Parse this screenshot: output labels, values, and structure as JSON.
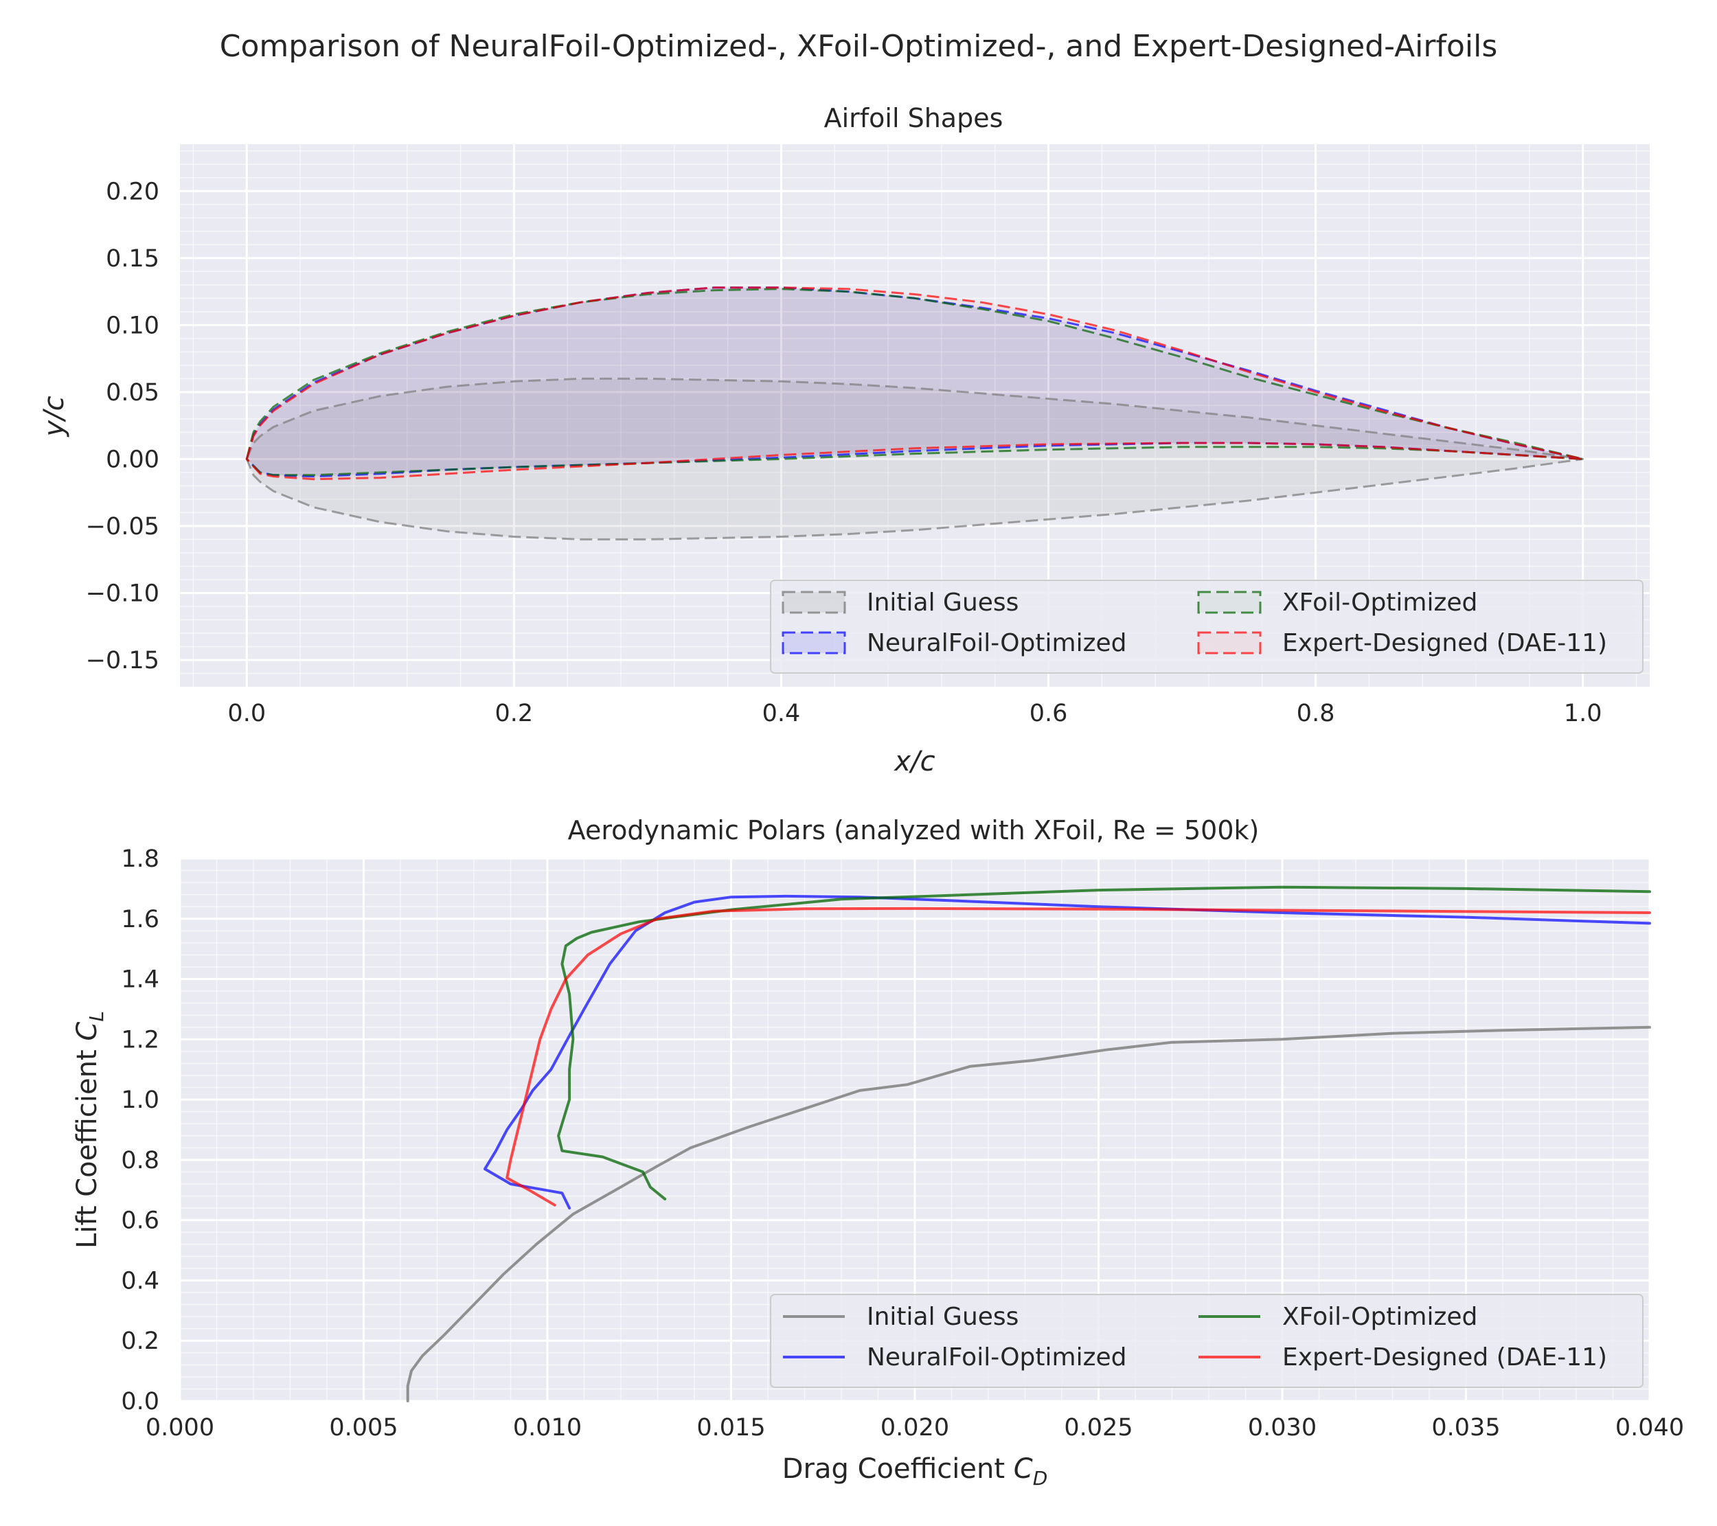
{
  "figure": {
    "title": "Comparison of NeuralFoil-Optimized-, XFoil-Optimized-, and Expert-Designed-Airfoils"
  },
  "colors": {
    "initial": "#808080",
    "neuralfoil": "#0000ff",
    "xfoil": "#006400",
    "expert": "#ff0000",
    "axes_bg": "#eaeaf2",
    "grid": "#ffffff"
  },
  "chart_data": [
    {
      "type": "line",
      "panel": "airfoil-shapes",
      "title": "Airfoil Shapes",
      "xlabel": "x/c",
      "ylabel": "y/c",
      "xlim": [
        -0.05,
        1.05
      ],
      "ylim": [
        -0.17,
        0.235
      ],
      "xticks": [
        0.0,
        0.2,
        0.4,
        0.6,
        0.8,
        1.0
      ],
      "xtick_labels": [
        "0.0",
        "0.2",
        "0.4",
        "0.6",
        "0.8",
        "1.0"
      ],
      "yticks": [
        0.2,
        0.15,
        0.1,
        0.05,
        0.0,
        -0.05,
        -0.1,
        -0.15
      ],
      "ytick_labels": [
        "0.20",
        "0.15",
        "0.10",
        "0.05",
        "0.00",
        "−0.05",
        "−0.10",
        "−0.15"
      ],
      "grid": true,
      "legend": {
        "location": "lower-right",
        "entries": [
          "Initial Guess",
          "XFoil-Optimized",
          "NeuralFoil-Optimized",
          "Expert-Designed (DAE-11)"
        ]
      },
      "series": [
        {
          "name": "Initial Guess",
          "key": "initial",
          "style": "dashed-filled",
          "upper_x": [
            0,
            0.005,
            0.01,
            0.02,
            0.05,
            0.1,
            0.15,
            0.2,
            0.25,
            0.3,
            0.35,
            0.4,
            0.45,
            0.5,
            0.55,
            0.6,
            0.65,
            0.7,
            0.75,
            0.8,
            0.85,
            0.9,
            0.95,
            1.0
          ],
          "upper_y": [
            0,
            0.012,
            0.017,
            0.024,
            0.036,
            0.047,
            0.054,
            0.058,
            0.06,
            0.06,
            0.059,
            0.058,
            0.056,
            0.053,
            0.049,
            0.045,
            0.041,
            0.036,
            0.031,
            0.025,
            0.019,
            0.013,
            0.007,
            0.0
          ],
          "lower_x": [
            0,
            0.005,
            0.01,
            0.02,
            0.05,
            0.1,
            0.15,
            0.2,
            0.25,
            0.3,
            0.35,
            0.4,
            0.45,
            0.5,
            0.55,
            0.6,
            0.65,
            0.7,
            0.75,
            0.8,
            0.85,
            0.9,
            0.95,
            1.0
          ],
          "lower_y": [
            0,
            -0.012,
            -0.017,
            -0.024,
            -0.036,
            -0.047,
            -0.054,
            -0.058,
            -0.06,
            -0.06,
            -0.059,
            -0.058,
            -0.056,
            -0.053,
            -0.049,
            -0.045,
            -0.041,
            -0.036,
            -0.031,
            -0.025,
            -0.019,
            -0.013,
            -0.007,
            0.0
          ]
        },
        {
          "name": "NeuralFoil-Optimized",
          "key": "neuralfoil",
          "style": "dashed-filled",
          "upper_x": [
            0,
            0.005,
            0.01,
            0.02,
            0.05,
            0.1,
            0.15,
            0.2,
            0.25,
            0.3,
            0.35,
            0.4,
            0.45,
            0.5,
            0.55,
            0.6,
            0.65,
            0.7,
            0.75,
            0.8,
            0.85,
            0.9,
            0.95,
            1.0
          ],
          "upper_y": [
            0,
            0.018,
            0.026,
            0.037,
            0.057,
            0.078,
            0.094,
            0.107,
            0.117,
            0.124,
            0.128,
            0.128,
            0.125,
            0.12,
            0.113,
            0.105,
            0.094,
            0.08,
            0.066,
            0.051,
            0.037,
            0.023,
            0.011,
            0.0
          ],
          "lower_x": [
            0,
            0.01,
            0.02,
            0.05,
            0.1,
            0.15,
            0.2,
            0.3,
            0.4,
            0.5,
            0.6,
            0.7,
            0.75,
            0.8,
            0.85,
            0.9,
            0.95,
            1.0
          ],
          "lower_y": [
            0,
            -0.01,
            -0.012,
            -0.013,
            -0.011,
            -0.008,
            -0.006,
            -0.003,
            0.001,
            0.006,
            0.01,
            0.012,
            0.012,
            0.011,
            0.009,
            0.006,
            0.003,
            0.0
          ]
        },
        {
          "name": "XFoil-Optimized",
          "key": "xfoil",
          "style": "dashed",
          "upper_x": [
            0,
            0.005,
            0.01,
            0.02,
            0.05,
            0.1,
            0.15,
            0.2,
            0.25,
            0.3,
            0.35,
            0.4,
            0.45,
            0.5,
            0.55,
            0.6,
            0.65,
            0.7,
            0.75,
            0.8,
            0.85,
            0.9,
            0.95,
            1.0
          ],
          "upper_y": [
            0,
            0.02,
            0.028,
            0.039,
            0.059,
            0.079,
            0.095,
            0.108,
            0.117,
            0.123,
            0.126,
            0.127,
            0.125,
            0.12,
            0.112,
            0.103,
            0.09,
            0.076,
            0.061,
            0.048,
            0.035,
            0.023,
            0.012,
            0.0
          ],
          "lower_x": [
            0,
            0.01,
            0.02,
            0.05,
            0.1,
            0.15,
            0.2,
            0.3,
            0.4,
            0.5,
            0.6,
            0.7,
            0.75,
            0.8,
            0.85,
            0.9,
            0.95,
            1.0
          ],
          "lower_y": [
            0,
            -0.01,
            -0.012,
            -0.012,
            -0.01,
            -0.008,
            -0.006,
            -0.003,
            0.0,
            0.004,
            0.007,
            0.009,
            0.009,
            0.009,
            0.008,
            0.006,
            0.003,
            0.0
          ]
        },
        {
          "name": "Expert-Designed (DAE-11)",
          "key": "expert",
          "style": "dashed",
          "upper_x": [
            0,
            0.005,
            0.01,
            0.02,
            0.05,
            0.1,
            0.15,
            0.2,
            0.25,
            0.3,
            0.35,
            0.4,
            0.45,
            0.5,
            0.55,
            0.6,
            0.65,
            0.7,
            0.75,
            0.8,
            0.85,
            0.9,
            0.95,
            1.0
          ],
          "upper_y": [
            0,
            0.017,
            0.025,
            0.036,
            0.056,
            0.078,
            0.094,
            0.107,
            0.117,
            0.124,
            0.128,
            0.128,
            0.127,
            0.123,
            0.117,
            0.108,
            0.096,
            0.081,
            0.065,
            0.05,
            0.036,
            0.023,
            0.011,
            0.0
          ],
          "lower_x": [
            0,
            0.01,
            0.02,
            0.05,
            0.1,
            0.15,
            0.2,
            0.3,
            0.4,
            0.5,
            0.6,
            0.7,
            0.75,
            0.8,
            0.85,
            0.9,
            0.95,
            1.0
          ],
          "lower_y": [
            0,
            -0.011,
            -0.013,
            -0.015,
            -0.014,
            -0.011,
            -0.008,
            -0.003,
            0.003,
            0.008,
            0.011,
            0.012,
            0.012,
            0.011,
            0.009,
            0.006,
            0.003,
            0.0
          ]
        }
      ]
    },
    {
      "type": "line",
      "panel": "aerodynamic-polars",
      "title": "Aerodynamic Polars (analyzed with XFoil, Re = 500k)",
      "xlabel": "Drag Coefficient C_D",
      "ylabel": "Lift Coefficient C_L",
      "xlim": [
        0.0,
        0.04
      ],
      "ylim": [
        0.0,
        1.8
      ],
      "xticks": [
        0.0,
        0.005,
        0.01,
        0.015,
        0.02,
        0.025,
        0.03,
        0.035,
        0.04
      ],
      "xtick_labels": [
        "0.000",
        "0.005",
        "0.010",
        "0.015",
        "0.020",
        "0.025",
        "0.030",
        "0.035",
        "0.040"
      ],
      "yticks": [
        0.0,
        0.2,
        0.4,
        0.6,
        0.8,
        1.0,
        1.2,
        1.4,
        1.6,
        1.8
      ],
      "ytick_labels": [
        "0.0",
        "0.2",
        "0.4",
        "0.6",
        "0.8",
        "1.0",
        "1.2",
        "1.4",
        "1.6",
        "1.8"
      ],
      "grid": true,
      "legend": {
        "location": "lower-right",
        "entries": [
          "Initial Guess",
          "XFoil-Optimized",
          "NeuralFoil-Optimized",
          "Expert-Designed (DAE-11)"
        ]
      },
      "series": [
        {
          "name": "Initial Guess",
          "key": "initial",
          "x": [
            0.0062,
            0.0062,
            0.0063,
            0.0066,
            0.0072,
            0.008,
            0.0088,
            0.0097,
            0.0107,
            0.012,
            0.013,
            0.0139,
            0.0155,
            0.017,
            0.0185,
            0.0198,
            0.0215,
            0.0232,
            0.0252,
            0.027,
            0.03,
            0.033,
            0.036,
            0.04
          ],
          "y": [
            0.0,
            0.05,
            0.1,
            0.15,
            0.22,
            0.32,
            0.42,
            0.52,
            0.62,
            0.71,
            0.78,
            0.84,
            0.91,
            0.97,
            1.03,
            1.05,
            1.11,
            1.13,
            1.165,
            1.19,
            1.2,
            1.22,
            1.23,
            1.24
          ]
        },
        {
          "name": "NeuralFoil-Optimized",
          "key": "neuralfoil",
          "x": [
            0.0106,
            0.0104,
            0.009,
            0.0083,
            0.0086,
            0.0089,
            0.0093,
            0.0096,
            0.0101,
            0.0105,
            0.011,
            0.0117,
            0.0124,
            0.0132,
            0.014,
            0.015,
            0.0165,
            0.0185,
            0.021,
            0.025,
            0.03,
            0.035,
            0.04
          ],
          "y": [
            0.64,
            0.69,
            0.72,
            0.77,
            0.83,
            0.9,
            0.97,
            1.03,
            1.1,
            1.19,
            1.3,
            1.45,
            1.56,
            1.62,
            1.655,
            1.672,
            1.675,
            1.672,
            1.66,
            1.64,
            1.62,
            1.605,
            1.585
          ]
        },
        {
          "name": "XFoil-Optimized",
          "key": "xfoil",
          "x": [
            0.0132,
            0.0128,
            0.0126,
            0.0115,
            0.0104,
            0.0103,
            0.0104,
            0.0106,
            0.0106,
            0.0107,
            0.0106,
            0.0104,
            0.0105,
            0.0108,
            0.0112,
            0.0125,
            0.015,
            0.018,
            0.025,
            0.03,
            0.035,
            0.04
          ],
          "y": [
            0.67,
            0.71,
            0.76,
            0.81,
            0.83,
            0.88,
            0.92,
            1.0,
            1.1,
            1.2,
            1.35,
            1.45,
            1.51,
            1.535,
            1.555,
            1.59,
            1.63,
            1.665,
            1.695,
            1.705,
            1.7,
            1.69
          ]
        },
        {
          "name": "Expert-Designed (DAE-11)",
          "key": "expert",
          "x": [
            0.0102,
            0.0095,
            0.0089,
            0.009,
            0.0092,
            0.0094,
            0.0096,
            0.0098,
            0.0101,
            0.0105,
            0.0111,
            0.012,
            0.013,
            0.0145,
            0.017,
            0.02,
            0.025,
            0.03,
            0.035,
            0.04
          ],
          "y": [
            0.65,
            0.7,
            0.74,
            0.8,
            0.9,
            1.0,
            1.1,
            1.2,
            1.3,
            1.4,
            1.48,
            1.55,
            1.6,
            1.625,
            1.633,
            1.634,
            1.632,
            1.628,
            1.624,
            1.62
          ]
        }
      ]
    }
  ]
}
